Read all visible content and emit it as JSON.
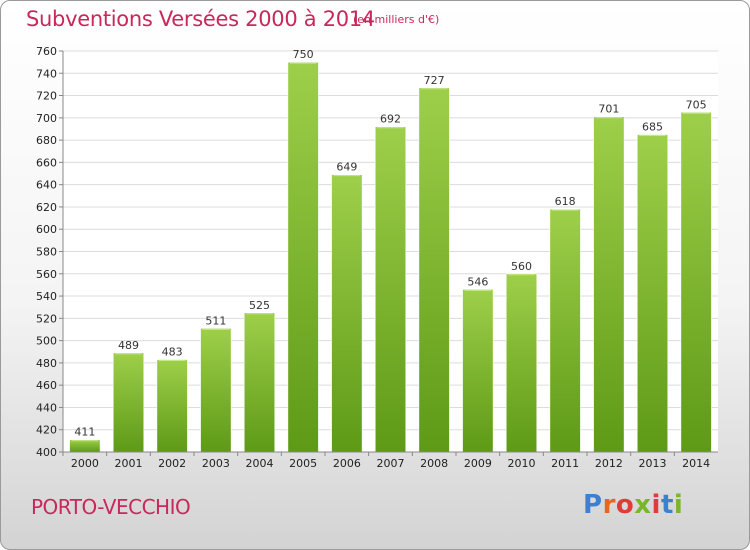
{
  "header": {
    "title": "Subventions Versées 2000 à 2014",
    "unit": "(en milliers d'€)"
  },
  "footer": {
    "place": "PORTO-VECCHIO",
    "logo": "Proxiti",
    "logo_colors": [
      "#3e7fcf",
      "#e8671d",
      "#e13a37",
      "#7ab62a",
      "#e13a37",
      "#3e7fcf",
      "#7ab62a"
    ]
  },
  "colors": {
    "title": "#c8285a",
    "bar_top": "#9ecf4a",
    "bar_bottom": "#5e9a16",
    "grid": "#dcdcdc"
  },
  "chart_data": {
    "type": "bar",
    "title": "Subventions Versées 2000 à 2014",
    "subtitle": "(en milliers d'€)",
    "categories": [
      "2000",
      "2001",
      "2002",
      "2003",
      "2004",
      "2005",
      "2006",
      "2007",
      "2008",
      "2009",
      "2010",
      "2011",
      "2012",
      "2013",
      "2014"
    ],
    "values": [
      411,
      489,
      483,
      511,
      525,
      750,
      649,
      692,
      727,
      546,
      560,
      618,
      701,
      685,
      705
    ],
    "ylim": [
      400,
      760
    ],
    "ytick_step": 20,
    "grid": true,
    "xlabel": "",
    "ylabel": ""
  }
}
